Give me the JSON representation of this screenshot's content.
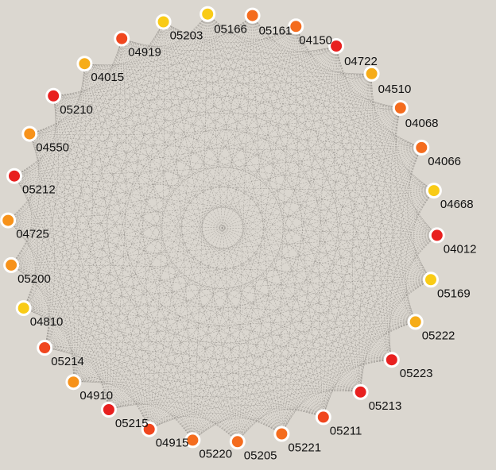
{
  "colors": {
    "background": "#dbd7d0",
    "edge": "#8a8680",
    "node_stroke": "#ffffff",
    "red": "#e8201f",
    "red_orange": "#f0461e",
    "orange": "#f46c1e",
    "amber": "#f7921a",
    "yellow_orange": "#f6ac18",
    "yellow": "#f9cb16"
  },
  "chart_data": {
    "type": "network",
    "layout": "circular",
    "edges": "dense all-to-all",
    "nodes": [
      {
        "label": "05166",
        "color": "yellow"
      },
      {
        "label": "05161",
        "color": "orange"
      },
      {
        "label": "04150",
        "color": "orange"
      },
      {
        "label": "04722",
        "color": "red"
      },
      {
        "label": "04510",
        "color": "yellow_orange"
      },
      {
        "label": "04068",
        "color": "orange"
      },
      {
        "label": "04066",
        "color": "orange"
      },
      {
        "label": "04668",
        "color": "yellow"
      },
      {
        "label": "04012",
        "color": "red"
      },
      {
        "label": "05169",
        "color": "yellow"
      },
      {
        "label": "05222",
        "color": "yellow_orange"
      },
      {
        "label": "05223",
        "color": "red"
      },
      {
        "label": "05213",
        "color": "red"
      },
      {
        "label": "05211",
        "color": "red_orange"
      },
      {
        "label": "05221",
        "color": "orange"
      },
      {
        "label": "05205",
        "color": "orange"
      },
      {
        "label": "05220",
        "color": "orange"
      },
      {
        "label": "04915",
        "color": "red_orange"
      },
      {
        "label": "05215",
        "color": "red"
      },
      {
        "label": "04910",
        "color": "amber"
      },
      {
        "label": "05214",
        "color": "red_orange"
      },
      {
        "label": "04810",
        "color": "yellow"
      },
      {
        "label": "05200",
        "color": "amber"
      },
      {
        "label": "04725",
        "color": "amber"
      },
      {
        "label": "05212",
        "color": "red"
      },
      {
        "label": "04550",
        "color": "amber"
      },
      {
        "label": "05210",
        "color": "red"
      },
      {
        "label": "04015",
        "color": "yellow_orange"
      },
      {
        "label": "04919",
        "color": "red_orange"
      },
      {
        "label": "05203",
        "color": "yellow"
      }
    ]
  }
}
